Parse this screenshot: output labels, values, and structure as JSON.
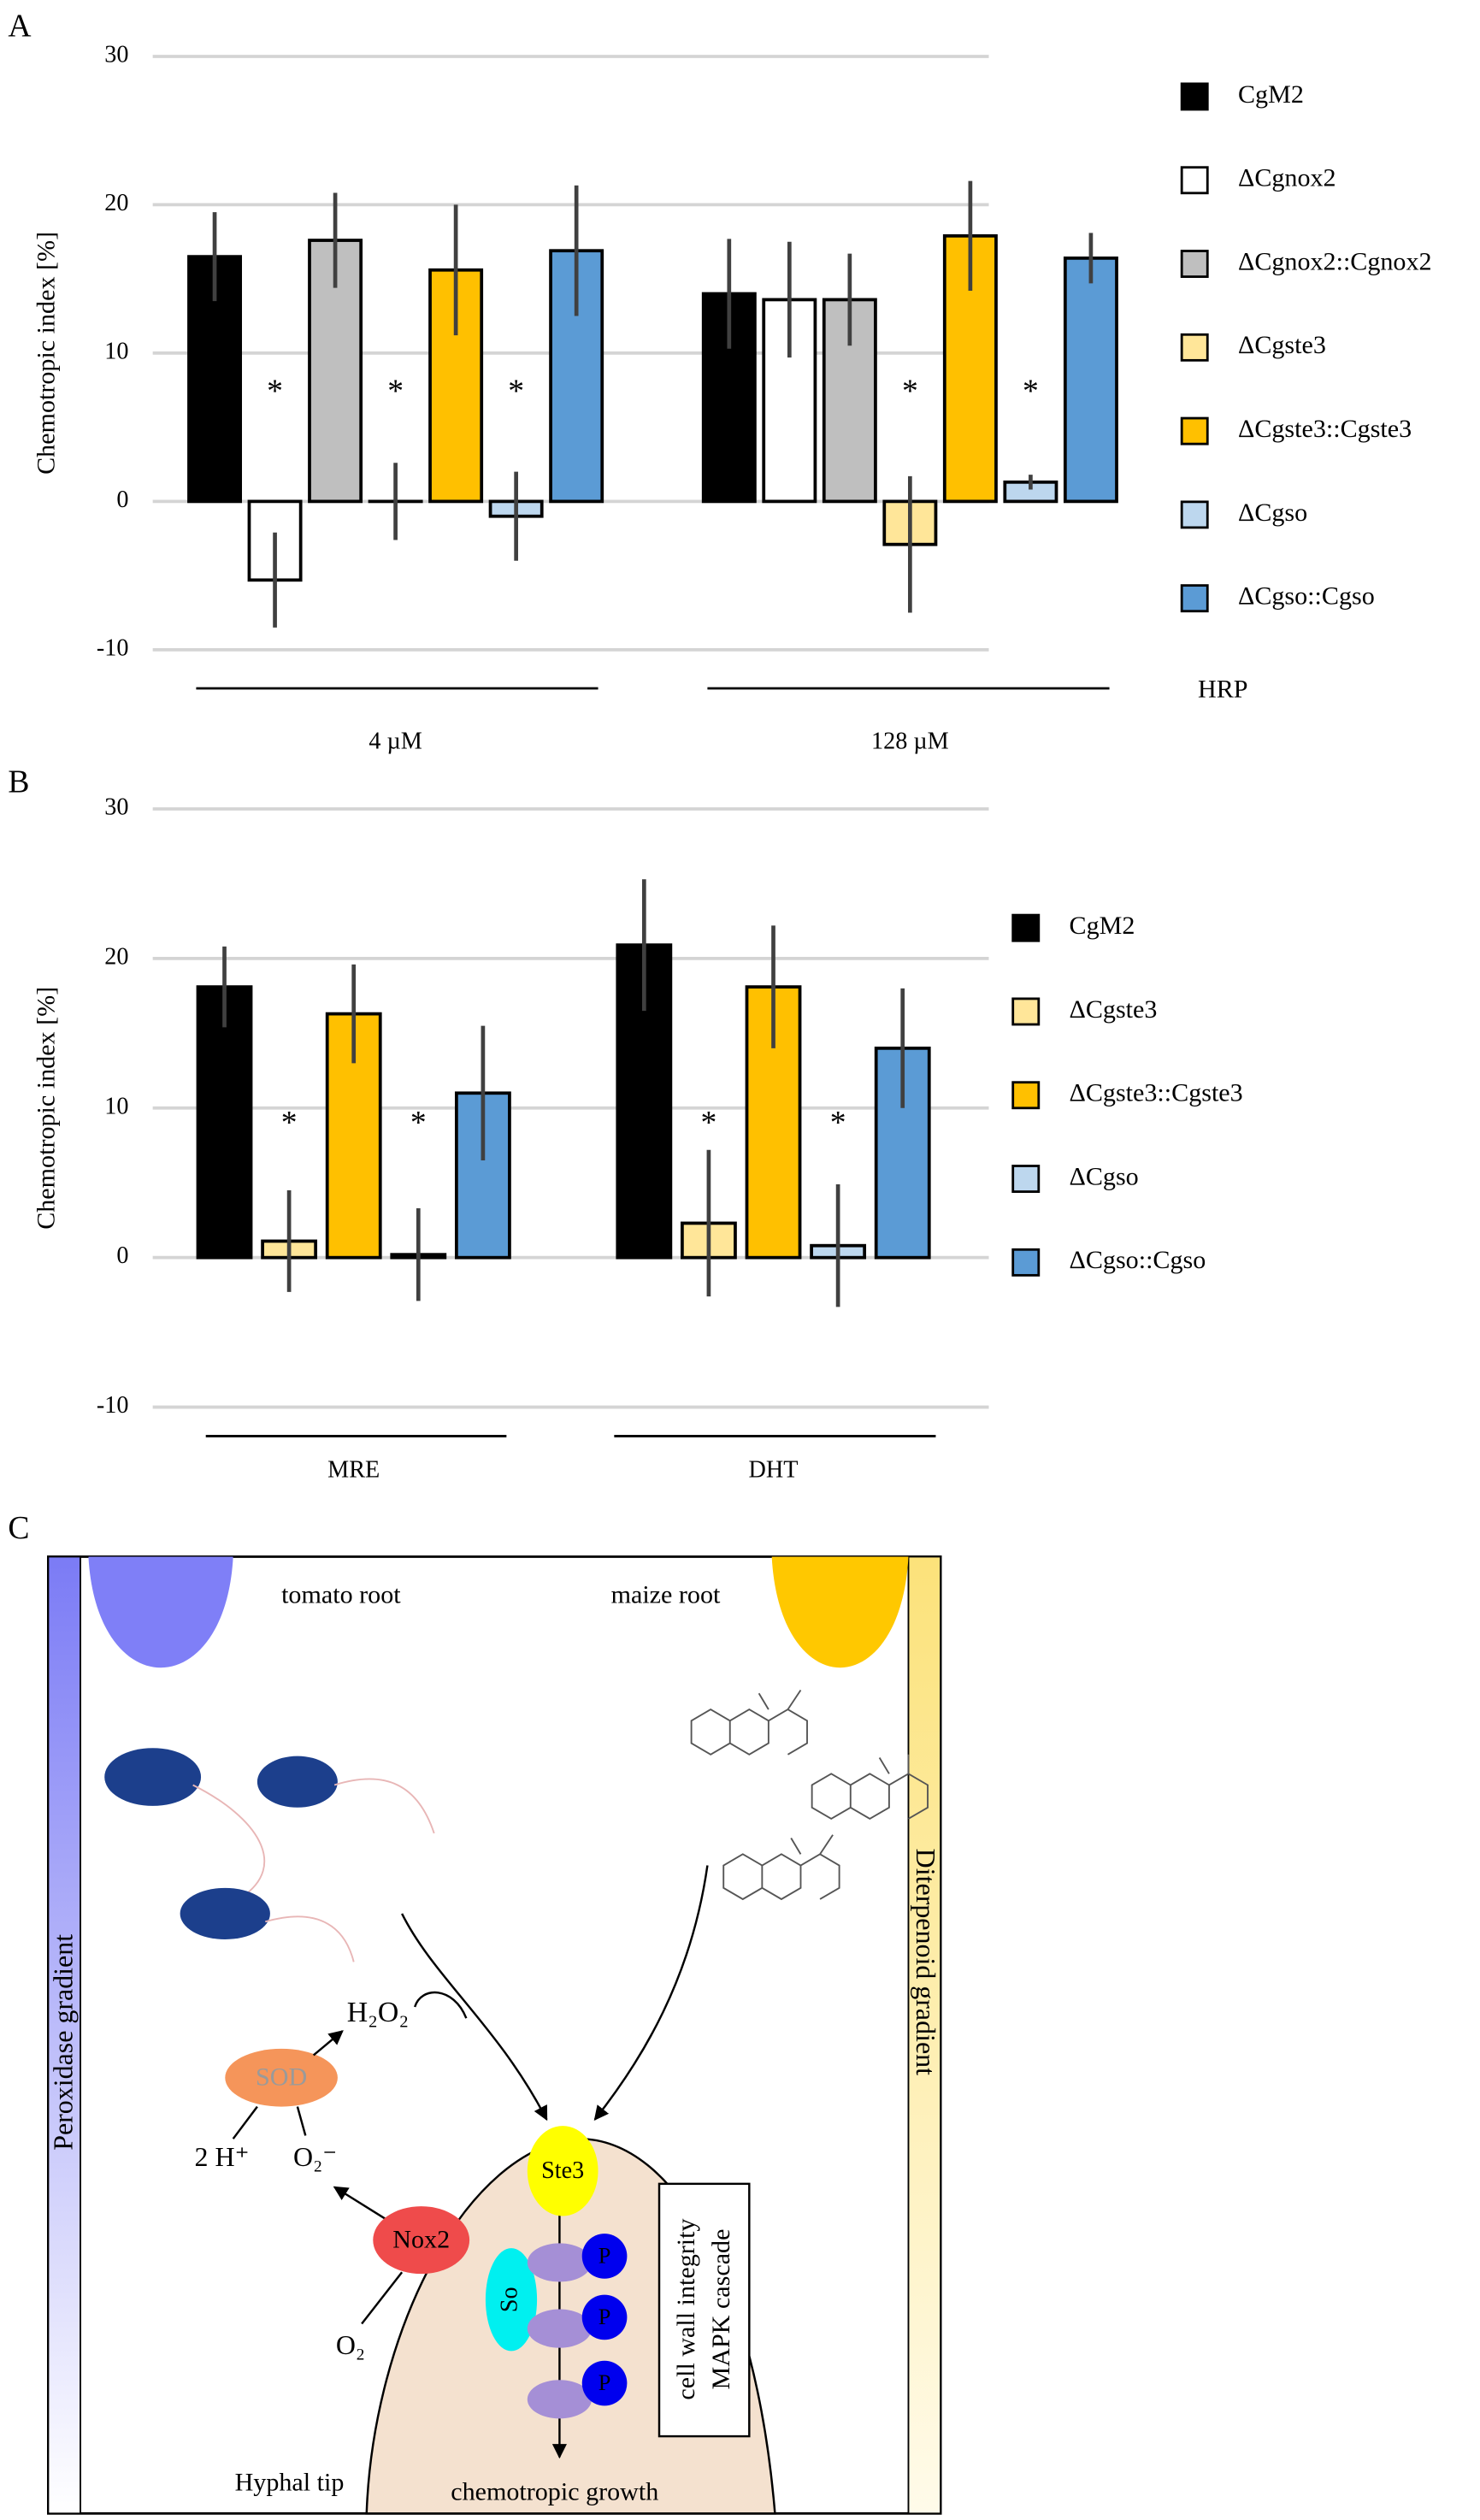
{
  "chart_data": [
    {
      "type": "bar",
      "panel": "A",
      "ylabel": "Chemotropic index [%]",
      "categories": [
        "4 µM",
        "128 µM"
      ],
      "group_label": "HRP",
      "ylim": [
        -10,
        30
      ],
      "yticks": [
        -10,
        0,
        10,
        20,
        30
      ],
      "grid": true,
      "series": [
        {
          "name": "CgM2",
          "color": "#000000",
          "values": [
            16.5,
            14.0
          ],
          "errors": [
            3.0,
            3.7
          ],
          "significance": [
            null,
            null
          ]
        },
        {
          "name": "ΔCgnox2",
          "color": "#ffffff",
          "values": [
            -5.3,
            13.6
          ],
          "errors": [
            3.2,
            3.9
          ],
          "significance": [
            "*",
            null
          ]
        },
        {
          "name": "ΔCgnox2::Cgnox2",
          "color": "#bfbfbf",
          "values": [
            17.6,
            13.6
          ],
          "errors": [
            3.2,
            3.1
          ],
          "significance": [
            null,
            null
          ]
        },
        {
          "name": "ΔCgste3",
          "color": "#ffe699",
          "values": [
            0,
            -2.9
          ],
          "errors": [
            2.6,
            4.6
          ],
          "significance": [
            "*",
            "*"
          ]
        },
        {
          "name": "ΔCgste3::Cgste3",
          "color": "#ffc000",
          "values": [
            15.6,
            17.9
          ],
          "errors": [
            4.4,
            3.7
          ],
          "significance": [
            null,
            null
          ]
        },
        {
          "name": "ΔCgso",
          "color": "#bdd7ee",
          "values": [
            -1.0,
            1.3
          ],
          "errors": [
            3.0,
            0.5
          ],
          "significance": [
            "*",
            "*"
          ]
        },
        {
          "name": "ΔCgso::Cgso",
          "color": "#5b9bd5",
          "values": [
            16.9,
            16.4
          ],
          "errors": [
            4.4,
            1.7
          ],
          "significance": [
            null,
            null
          ]
        }
      ]
    },
    {
      "type": "bar",
      "panel": "B",
      "ylabel": "Chemotropic index [%]",
      "categories": [
        "MRE",
        "DHT"
      ],
      "ylim": [
        -10,
        30
      ],
      "yticks": [
        -10,
        0,
        10,
        20,
        30
      ],
      "grid": true,
      "series": [
        {
          "name": "CgM2",
          "color": "#000000",
          "values": [
            18.1,
            20.9
          ],
          "errors": [
            2.7,
            4.4
          ],
          "significance": [
            null,
            null
          ]
        },
        {
          "name": "ΔCgste3",
          "color": "#ffe699",
          "values": [
            1.1,
            2.3
          ],
          "errors": [
            3.4,
            4.9
          ],
          "significance": [
            "*",
            "*"
          ]
        },
        {
          "name": "ΔCgste3::Cgste3",
          "color": "#ffc000",
          "values": [
            16.3,
            18.1
          ],
          "errors": [
            3.3,
            4.1
          ],
          "significance": [
            null,
            null
          ]
        },
        {
          "name": "ΔCgso",
          "color": "#bdd7ee",
          "values": [
            0.2,
            0.8
          ],
          "errors": [
            3.1,
            4.1
          ],
          "significance": [
            "*",
            "*"
          ]
        },
        {
          "name": "ΔCgso::Cgso",
          "color": "#5b9bd5",
          "values": [
            11.0,
            14.0
          ],
          "errors": [
            4.5,
            4.0
          ],
          "significance": [
            null,
            null
          ]
        }
      ]
    }
  ],
  "diagram": {
    "panel": "C",
    "tomato_root": "tomato root",
    "maize_root": "maize root",
    "left_gradient": "Peroxidase gradient",
    "right_gradient": "Diterpenoid gradient",
    "h2o2": "H₂O₂",
    "sod": "SOD",
    "protons": "2 H⁺",
    "superoxide": "O₂⁻",
    "nox2": "Nox2",
    "oxygen": "O₂",
    "ste3": "Ste3",
    "so": "So",
    "p1": "P",
    "p2": "P",
    "p3": "P",
    "cascade_line1": "cell wall integrity",
    "cascade_line2": "MAPK cascade",
    "hyphal_tip": "Hyphal tip",
    "growth": "chemotropic growth"
  }
}
